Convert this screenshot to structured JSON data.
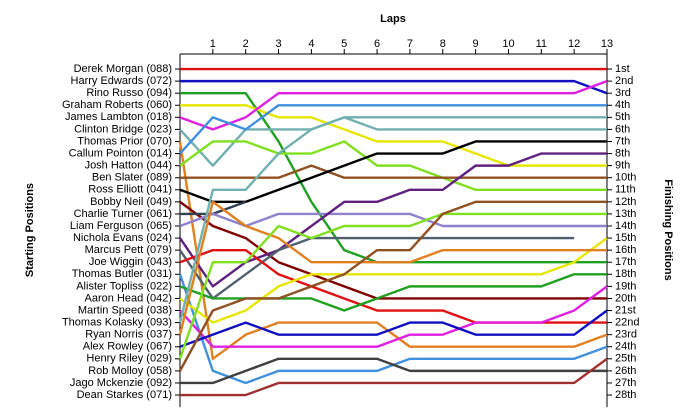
{
  "chart_data": {
    "type": "line",
    "title": "Laps",
    "y_left_label": "Starting Positions",
    "y_right_label": "Finishing Positions",
    "x": [
      0,
      1,
      2,
      3,
      4,
      5,
      6,
      7,
      8,
      9,
      10,
      11,
      12,
      13
    ],
    "xlim": [
      0,
      13
    ],
    "xticks": [
      1,
      2,
      3,
      4,
      5,
      6,
      7,
      8,
      9,
      10,
      11,
      12,
      13
    ],
    "ylim": [
      29,
      -1
    ],
    "yticks": [
      {
        "value": 1,
        "label": "1st"
      },
      {
        "value": 2,
        "label": "2nd"
      },
      {
        "value": 3,
        "label": "3rd"
      },
      {
        "value": 4,
        "label": "4th"
      },
      {
        "value": 5,
        "label": "5th"
      },
      {
        "value": 6,
        "label": "6th"
      },
      {
        "value": 7,
        "label": "7th"
      },
      {
        "value": 8,
        "label": "8th"
      },
      {
        "value": 9,
        "label": "9th"
      },
      {
        "value": 10,
        "label": "10th"
      },
      {
        "value": 11,
        "label": "11th"
      },
      {
        "value": 12,
        "label": "12th"
      },
      {
        "value": 13,
        "label": "13th"
      },
      {
        "value": 14,
        "label": "14th"
      },
      {
        "value": 15,
        "label": "15th"
      },
      {
        "value": 16,
        "label": "16th"
      },
      {
        "value": 17,
        "label": "17th"
      },
      {
        "value": 18,
        "label": "18th"
      },
      {
        "value": 19,
        "label": "19th"
      },
      {
        "value": 20,
        "label": "20th"
      },
      {
        "value": 21,
        "label": "21st"
      },
      {
        "value": 22,
        "label": "22nd"
      },
      {
        "value": 23,
        "label": "23rd"
      },
      {
        "value": 24,
        "label": "24th"
      },
      {
        "value": 25,
        "label": "25th"
      },
      {
        "value": 26,
        "label": "26th"
      },
      {
        "value": 27,
        "label": "27th"
      },
      {
        "value": 28,
        "label": "28th"
      }
    ],
    "series": [
      {
        "name": "Derek Morgan (088)",
        "color": "#e01010",
        "values": [
          1,
          1,
          1,
          1,
          1,
          1,
          1,
          1,
          1,
          1,
          1,
          1,
          1,
          1
        ]
      },
      {
        "name": "Harry Edwards (072)",
        "color": "#1010c0",
        "values": [
          2,
          2,
          2,
          2,
          2,
          2,
          2,
          2,
          2,
          2,
          2,
          2,
          2,
          3
        ]
      },
      {
        "name": "Rino Russo (094)",
        "color": "#20a020",
        "values": [
          3,
          3,
          3,
          7,
          12,
          16,
          17,
          17,
          17,
          17,
          17,
          17,
          17,
          17
        ]
      },
      {
        "name": "Graham Roberts (060)",
        "color": "#e6e600",
        "values": [
          4,
          4,
          4,
          5,
          5,
          6,
          7,
          7,
          7,
          8,
          9,
          9,
          9,
          9
        ]
      },
      {
        "name": "James Lambton (018)",
        "color": "#e020e0",
        "values": [
          5,
          6,
          5,
          3,
          3,
          3,
          3,
          3,
          3,
          3,
          3,
          3,
          3,
          2
        ]
      },
      {
        "name": "Clinton Bridge (023)",
        "color": "#70b0b0",
        "values": [
          6,
          9,
          6,
          6,
          6,
          5,
          6,
          6,
          6,
          6,
          6,
          6,
          6,
          6
        ]
      },
      {
        "name": "Thomas Prior (070)",
        "color": "#e08020",
        "values": [
          7,
          25,
          23,
          22,
          22,
          22,
          22,
          24,
          24,
          24,
          24,
          24,
          24,
          23
        ]
      },
      {
        "name": "Callum Pointon (014)",
        "color": "#4090e0",
        "values": [
          8,
          5,
          6,
          4,
          4,
          4,
          4,
          4,
          4,
          4,
          4,
          4,
          4,
          4
        ]
      },
      {
        "name": "Josh Hatton (044)",
        "color": "#80e020",
        "values": [
          9,
          7,
          7,
          8,
          8,
          7,
          9,
          9,
          10,
          11,
          11,
          11,
          11,
          11
        ]
      },
      {
        "name": "Ben Slater (089)",
        "color": "#905020",
        "values": [
          10,
          10,
          10,
          10,
          9,
          10,
          10,
          10,
          10,
          10,
          10,
          10,
          10,
          10
        ]
      },
      {
        "name": "Ross Elliott (041)",
        "color": "#000000",
        "values": [
          11,
          12,
          12,
          11,
          10,
          9,
          8,
          8,
          8,
          7,
          7,
          7,
          7,
          7
        ]
      },
      {
        "name": "Bobby Neil (049)",
        "color": "#800000",
        "values": [
          12,
          14,
          15,
          17,
          18,
          19,
          20,
          20,
          20,
          20,
          20,
          20,
          20,
          20
        ]
      },
      {
        "name": "Charlie Turner (061)",
        "color": "#304050",
        "values": [
          13,
          13,
          12,
          null,
          null,
          null,
          null,
          null,
          null,
          null,
          null,
          null,
          null,
          null
        ]
      },
      {
        "name": "Liam Ferguson (065)",
        "color": "#9080d0",
        "values": [
          14,
          13,
          14,
          13,
          13,
          13,
          13,
          13,
          14,
          14,
          14,
          14,
          14,
          14
        ]
      },
      {
        "name": "Nichola Evans (024)",
        "color": "#602080",
        "values": [
          15,
          19,
          17,
          16,
          14,
          12,
          12,
          11,
          11,
          9,
          9,
          8,
          8,
          8
        ]
      },
      {
        "name": "Marcus Pett (079)",
        "color": "#506070",
        "values": [
          16,
          20,
          18,
          16,
          15,
          15,
          15,
          15,
          15,
          15,
          15,
          15,
          15,
          null
        ]
      },
      {
        "name": "Joe Wiggin (043)",
        "color": "#e01010",
        "values": [
          17,
          16,
          16,
          18,
          19,
          20,
          21,
          21,
          21,
          22,
          22,
          22,
          22,
          22
        ]
      },
      {
        "name": "Thomas Butler (031)",
        "color": "#4090e0",
        "values": [
          18,
          26,
          27,
          26,
          26,
          26,
          26,
          25,
          25,
          25,
          25,
          25,
          25,
          24
        ]
      },
      {
        "name": "Alister Topliss (022)",
        "color": "#20a020",
        "values": [
          19,
          20,
          20,
          20,
          20,
          21,
          20,
          19,
          19,
          19,
          19,
          19,
          18,
          18
        ]
      },
      {
        "name": "Aaron Head (042)",
        "color": "#e6e600",
        "values": [
          20,
          22,
          21,
          19,
          18,
          18,
          18,
          18,
          18,
          18,
          18,
          18,
          17,
          15
        ]
      },
      {
        "name": "Martin Speed (038)",
        "color": "#e020e0",
        "values": [
          21,
          24,
          24,
          24,
          24,
          24,
          24,
          23,
          23,
          22,
          22,
          22,
          21,
          19
        ]
      },
      {
        "name": "Thomas Kolasky (093)",
        "color": "#70b0b0",
        "values": [
          22,
          11,
          11,
          8,
          6,
          5,
          5,
          5,
          5,
          5,
          5,
          5,
          5,
          5
        ]
      },
      {
        "name": "Ryan Norris (037)",
        "color": "#e08020",
        "values": [
          23,
          12,
          14,
          15,
          17,
          17,
          17,
          17,
          16,
          16,
          16,
          16,
          16,
          16
        ]
      },
      {
        "name": "Alex Rowley (067)",
        "color": "#1010c0",
        "values": [
          24,
          23,
          22,
          23,
          23,
          23,
          23,
          22,
          22,
          23,
          23,
          23,
          23,
          21
        ]
      },
      {
        "name": "Henry Riley (029)",
        "color": "#80e020",
        "values": [
          25,
          17,
          17,
          14,
          15,
          14,
          14,
          14,
          13,
          13,
          13,
          13,
          13,
          13
        ]
      },
      {
        "name": "Rob Molloy (058)",
        "color": "#905020",
        "values": [
          26,
          21,
          20,
          20,
          19,
          18,
          16,
          16,
          13,
          12,
          12,
          12,
          12,
          12
        ]
      },
      {
        "name": "Jago Mckenzie (092)",
        "color": "#404040",
        "values": [
          27,
          27,
          26,
          25,
          25,
          25,
          25,
          26,
          26,
          26,
          26,
          26,
          26,
          26
        ]
      },
      {
        "name": "Dean Starkes (071)",
        "color": "#a03030",
        "values": [
          28,
          28,
          28,
          27,
          27,
          27,
          27,
          27,
          27,
          27,
          27,
          27,
          27,
          25
        ]
      }
    ]
  }
}
